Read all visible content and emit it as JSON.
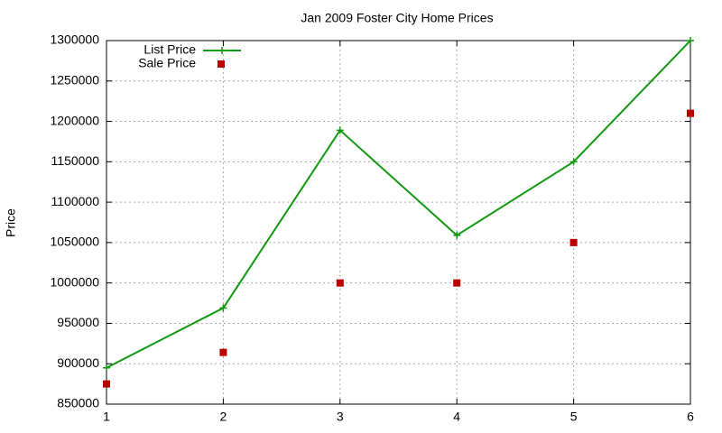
{
  "chart_data": {
    "type": "line",
    "title": "Jan 2009 Foster City Home Prices",
    "y_label": "Price",
    "x": [
      1,
      2,
      3,
      4,
      5,
      6
    ],
    "series": [
      {
        "name": "List Price",
        "color": "#119911",
        "mode": "lines+markers",
        "values": [
          895000,
          969000,
          1189000,
          1059000,
          1150000,
          1300000
        ]
      },
      {
        "name": "Sale Price",
        "color": "#bb0000",
        "mode": "markers",
        "values": [
          875000,
          914000,
          1000000,
          1000000,
          1050000,
          1210000
        ]
      }
    ],
    "xlim": [
      1,
      6
    ],
    "xticks": [
      1,
      2,
      3,
      4,
      5,
      6
    ],
    "ylim": [
      850000,
      1300000
    ],
    "yticks": [
      850000,
      900000,
      950000,
      1000000,
      1050000,
      1100000,
      1150000,
      1200000,
      1250000,
      1300000
    ],
    "grid": true,
    "legend": "top-left"
  }
}
